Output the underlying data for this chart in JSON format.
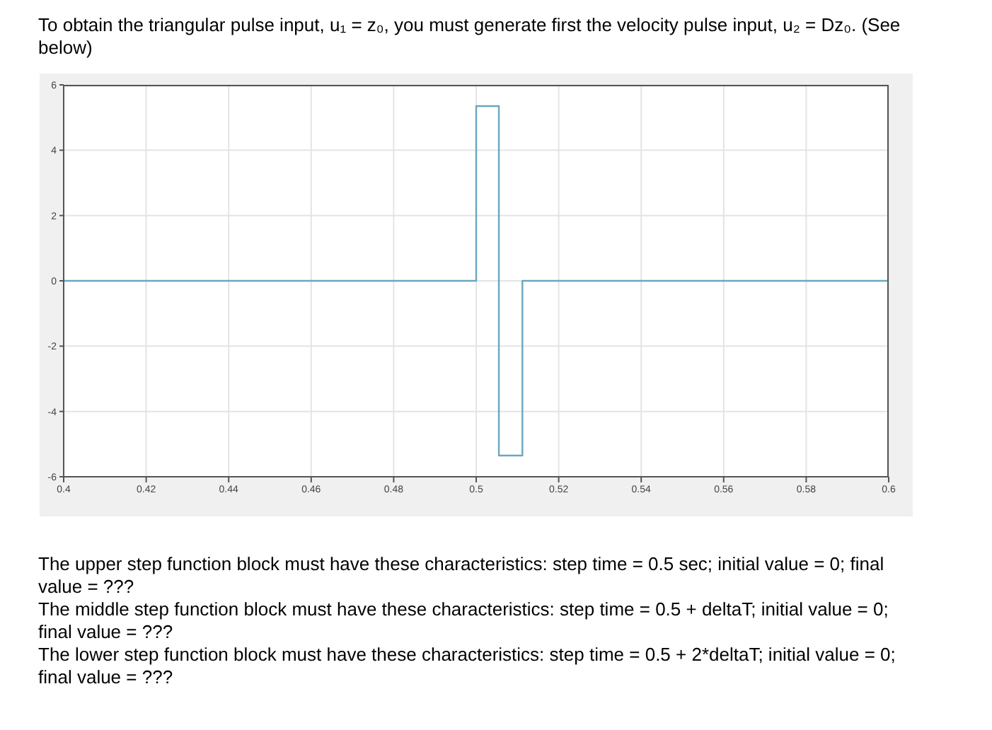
{
  "chart_data": {
    "type": "step",
    "title": "To obtain the triangular pulse input, u₁ = z₀, you must generate first the velocity pulse input, u₂ = Dz₀. (See below)",
    "x": [
      0.4,
      0.5,
      0.5055,
      0.5112,
      0.6
    ],
    "series": [
      {
        "color": "#6aa6c0",
        "values": [
          0,
          5.35,
          -5.35,
          0,
          0
        ]
      }
    ],
    "xlim": [
      0.4,
      0.6
    ],
    "xticks": [
      0.4,
      0.42,
      0.44,
      0.46,
      0.48,
      0.5,
      0.52,
      0.54,
      0.56,
      0.58,
      0.6
    ],
    "ylim": [
      -6,
      6
    ],
    "yticks": [
      -6,
      -4,
      -2,
      0,
      2,
      4,
      6
    ],
    "grid": true,
    "annotations": [
      "The upper step function block must have these characteristics: step time = 0.5 sec; initial value = 0; final value = ???",
      "The middle step function block must have these characteristics: step time = 0.5 + deltaT; initial value = 0; final value = ???",
      "The lower step function block must have these characteristics: step time = 0.5 + 2*deltaT; initial value = 0; final value = ???"
    ]
  }
}
